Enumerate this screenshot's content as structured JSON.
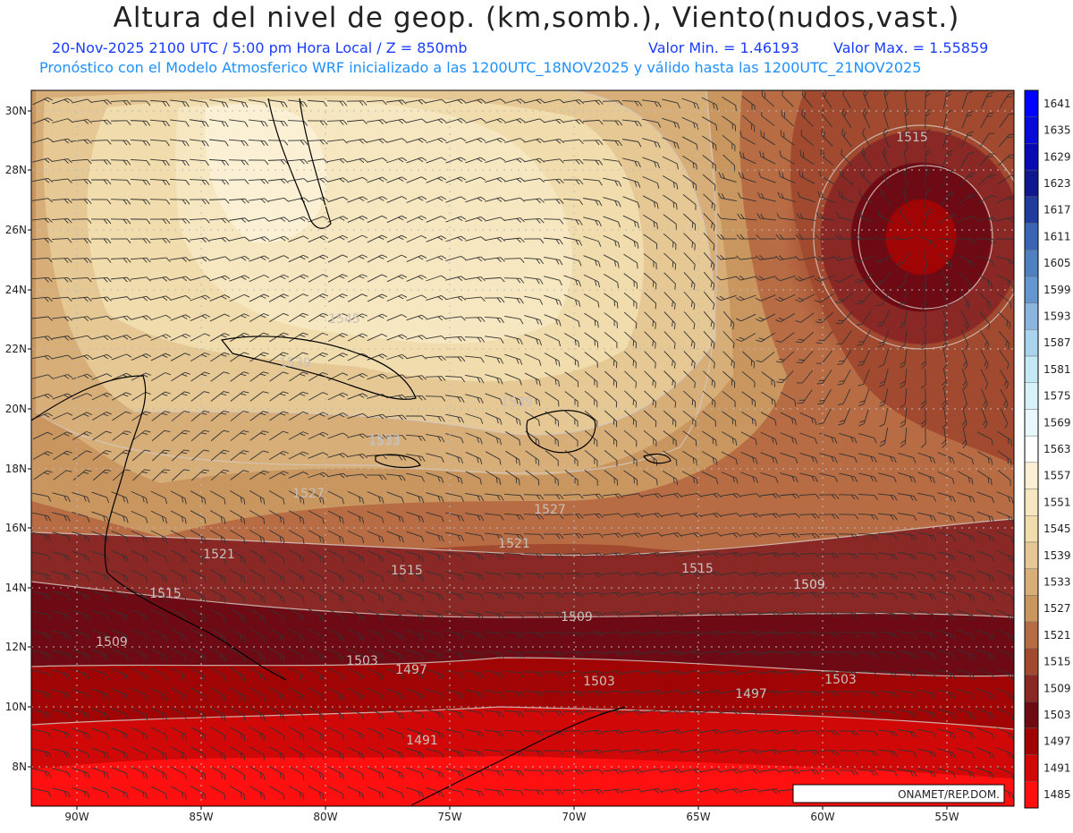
{
  "title": "Altura del nivel de geop. (km,somb.), Viento(nudos,vast.)",
  "subtitle": {
    "datetime": "20-Nov-2025  2100 UTC / 5:00 pm Hora Local / Z = 850mb",
    "min": "Valor Min. = 1.46193",
    "max": "Valor Max. = 1.55859",
    "model_info": "Pronóstico con el Modelo Atmosferico WRF inicializado a las 1200UTC_18NOV2025 y válido hasta las  1200UTC_21NOV2025"
  },
  "axes": {
    "lat_labels": [
      "30N",
      "28N",
      "26N",
      "24N",
      "22N",
      "20N",
      "18N",
      "16N",
      "14N",
      "12N",
      "10N",
      "8N"
    ],
    "lon_labels": [
      "90W",
      "85W",
      "80W",
      "75W",
      "70W",
      "65W",
      "60W",
      "55W"
    ]
  },
  "colorbar": {
    "levels": [
      "1641",
      "1635",
      "1629",
      "1623",
      "1617",
      "1611",
      "1605",
      "1599",
      "1593",
      "1587",
      "1581",
      "1575",
      "1569",
      "1563",
      "1557",
      "1551",
      "1545",
      "1539",
      "1533",
      "1527",
      "1521",
      "1515",
      "1509",
      "1503",
      "1497",
      "1491",
      "1485"
    ],
    "colors": [
      "#0000ff",
      "#0a0ad8",
      "#0a0ab4",
      "#101890",
      "#203c9c",
      "#3c64b4",
      "#5080c0",
      "#6496d0",
      "#8cb4dc",
      "#aad4ec",
      "#c4e8f4",
      "#d8f2fa",
      "#e8f8fc",
      "#ffffff",
      "#fbf0d4",
      "#f6e7c0",
      "#f0dcac",
      "#e6c894",
      "#d8ae78",
      "#c99660",
      "#b86c44",
      "#a24a30",
      "#8a2826",
      "#6e0a14",
      "#a00404",
      "#d00808",
      "#ff1010"
    ]
  },
  "contour_labels": [
    "1515",
    "1545",
    "1539",
    "1533",
    "1527",
    "1521",
    "1515",
    "1509",
    "1503",
    "1497",
    "1491",
    "1509",
    "1515",
    "1503",
    "1497",
    "1503",
    "1509",
    "1539",
    "1527",
    "1521",
    "1533",
    "1515",
    "1509"
  ],
  "credit": "ONAMET/REP.DOM.",
  "colors": {
    "title": "#222222",
    "subtitle1": "#1a3cff",
    "subtitle2": "#1e90ff",
    "frame": "#000000",
    "grid": "#bbbbbb"
  }
}
